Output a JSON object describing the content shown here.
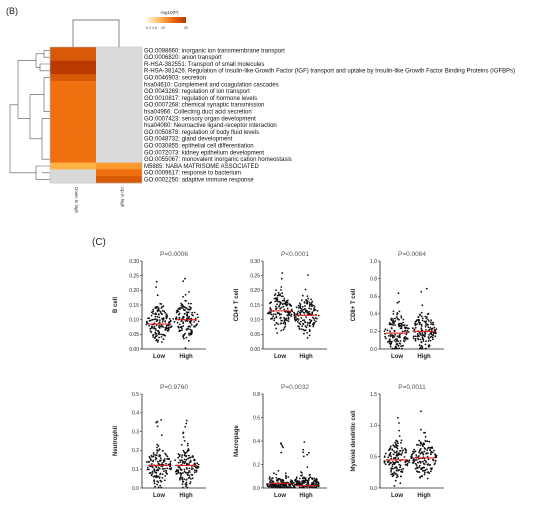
{
  "panel_b": {
    "label": "(B)",
    "legend_title": "-log10(P)",
    "legend_ticks": [
      "0",
      "2",
      "4",
      "6",
      "10",
      "20"
    ],
    "columns": [
      "Down in high",
      "Up in high"
    ],
    "rows": [
      "GO:0098660: inorganic ion transmembrane transport",
      "GO:0006820: anion transport",
      "R-HSA-382551: Transport of small molecules",
      "R-HSA-381426: Regulation of Insulin-like Growth Factor (IGF) transport and uptake by Insulin-like Growth Factor Binding Proteins (IGFBPs)",
      "GO:0046903: secretion",
      "hsa04610: Complement and coagulation cascades",
      "GO:0043269: regulation of ion transport",
      "GO:0010817: regulation of hormone levels",
      "GO:0007268: chemical synaptic transmission",
      "hsa04966: Collecting duct acid secretion",
      "GO:0007423: sensory organ development",
      "hsa04080: Neuroactive ligand-receptor interaction",
      "GO:0050878: regulation of body fluid levels",
      "GO:0048732: gland development",
      "GO:0030855: epithelial cell differentiation",
      "GO:0072073: kidney epithelium development",
      "GO:0055067: monovalent inorganic cation homeostasis",
      "M5885: NABA MATRISOME ASSOCIATED",
      "GO:0009617: response to bacterium",
      "GO:0002250: adaptive immune response"
    ],
    "colors": {
      "high": "#b83a00",
      "mid": "#f07010",
      "low": "#ffb347",
      "none": "#d9d9d9"
    }
  },
  "chart_data": {
    "type": "heatmap",
    "title": "",
    "x": [
      "Down in high",
      "Up in high"
    ],
    "y": [
      "GO:0098660",
      "GO:0006820",
      "R-HSA-382551",
      "R-HSA-381426",
      "GO:0046903",
      "hsa04610",
      "GO:0043269",
      "GO:0010817",
      "GO:0007268",
      "hsa04966",
      "GO:0007423",
      "hsa04080",
      "GO:0050878",
      "GO:0048732",
      "GO:0030855",
      "GO:0072073",
      "GO:0055067",
      "M5885",
      "GO:0009617",
      "GO:0002250"
    ],
    "values": [
      [
        14,
        null
      ],
      [
        15,
        null
      ],
      [
        18,
        null
      ],
      [
        17,
        null
      ],
      [
        12,
        null
      ],
      [
        11,
        null
      ],
      [
        10,
        null
      ],
      [
        10,
        null
      ],
      [
        9,
        null
      ],
      [
        10,
        null
      ],
      [
        9,
        null
      ],
      [
        9,
        null
      ],
      [
        10,
        null
      ],
      [
        9,
        null
      ],
      [
        10,
        null
      ],
      [
        9,
        null
      ],
      [
        10,
        null
      ],
      [
        5,
        7
      ],
      [
        null,
        11
      ],
      [
        null,
        12
      ]
    ],
    "colorbar_label": "-log10(P)"
  },
  "panel_c": {
    "label": "(C)",
    "xcats": [
      "Low",
      "High"
    ],
    "plots": [
      {
        "title": "P=0.0006",
        "ylabel": "B cell",
        "ylim": [
          0,
          0.3
        ],
        "yticks": [
          "0.00",
          "0.05",
          "0.10",
          "0.15",
          "0.20",
          "0.25",
          "0.30"
        ],
        "med": [
          0.085,
          0.1
        ]
      },
      {
        "title": "P<0.0001",
        "ylabel": "CD4+ T cell",
        "ylim": [
          0,
          0.3
        ],
        "yticks": [
          "0.00",
          "0.05",
          "0.10",
          "0.15",
          "0.20",
          "0.25",
          "0.30"
        ],
        "med": [
          0.13,
          0.115
        ]
      },
      {
        "title": "P=0.0064",
        "ylabel": "CD8+ T cell",
        "ylim": [
          0,
          1.0
        ],
        "yticks": [
          "0.0",
          "0.2",
          "0.4",
          "0.6",
          "0.8",
          "1.0"
        ],
        "med": [
          0.18,
          0.2
        ]
      },
      {
        "title": "P=0.9760",
        "ylabel": "Neutrophil",
        "ylim": [
          0,
          0.5
        ],
        "yticks": [
          "0.0",
          "0.1",
          "0.2",
          "0.3",
          "0.4",
          "0.5"
        ],
        "med": [
          0.12,
          0.12
        ]
      },
      {
        "title": "P=0.0032",
        "ylabel": "Macropage",
        "ylim": [
          0,
          0.8
        ],
        "yticks": [
          "0.0",
          "0.2",
          "0.4",
          "0.6",
          "0.8"
        ],
        "med": [
          0.04,
          0.02
        ]
      },
      {
        "title": "P=0.0011",
        "ylabel": "Myeloid dendritic cell",
        "ylim": [
          0,
          1.5
        ],
        "yticks": [
          "0.0",
          "0.5",
          "1.0",
          "1.5"
        ],
        "med": [
          0.45,
          0.48
        ]
      }
    ],
    "median_color": "#e02020"
  }
}
